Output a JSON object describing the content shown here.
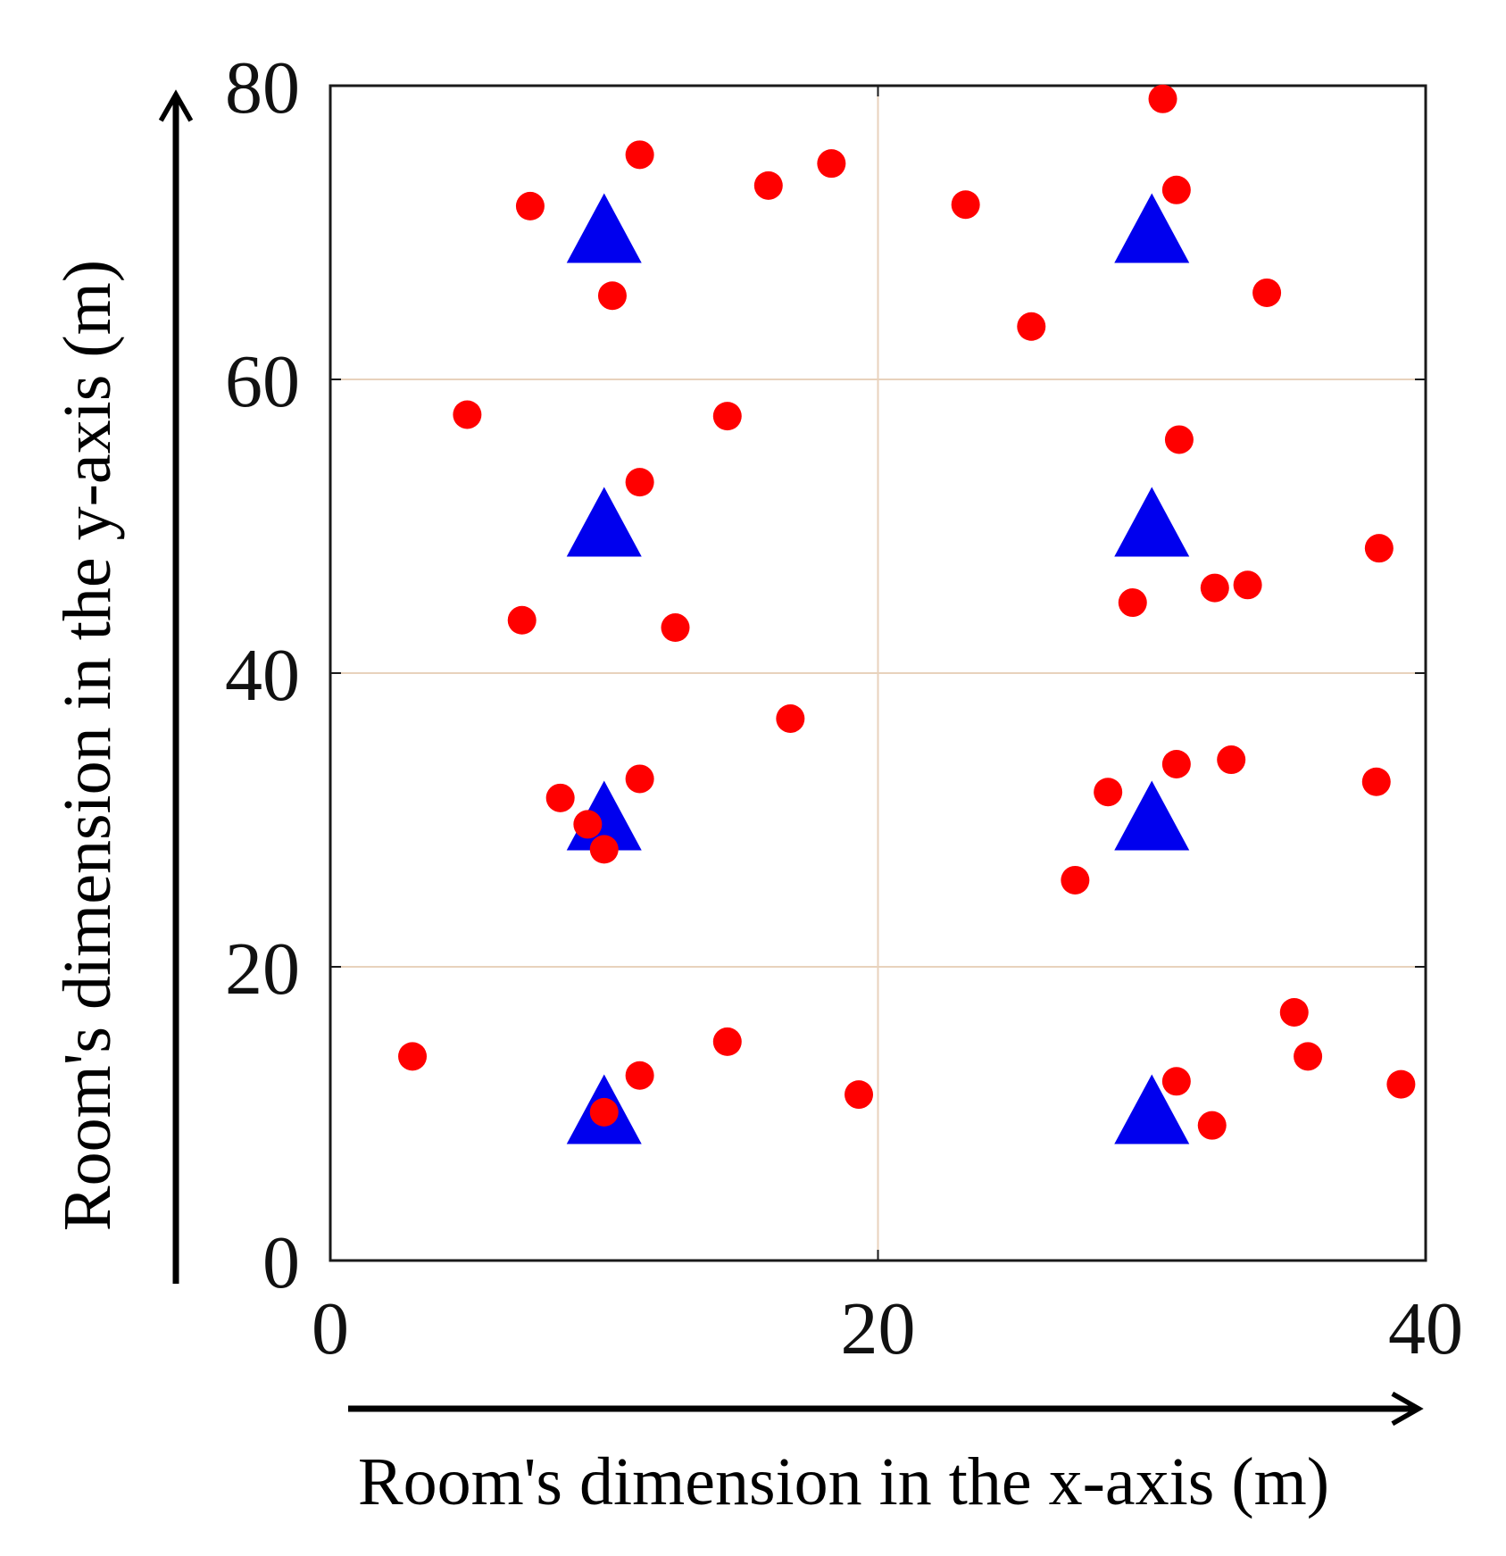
{
  "chart_data": {
    "type": "scatter",
    "title": "",
    "xlabel": "Room's dimension in the x-axis (m)",
    "ylabel": "Room's dimension in the y-axis (m)",
    "xlim": [
      0,
      40
    ],
    "ylim": [
      0,
      80
    ],
    "x_ticks": [
      "0",
      "20",
      "40"
    ],
    "y_ticks": [
      "0",
      "20",
      "40",
      "60",
      "80"
    ],
    "grid": true,
    "grid_color": "#e8d2bc",
    "frame_color": "#1a1a1a",
    "series": [
      {
        "marker": "triangle",
        "color": "#0000ee",
        "points": [
          [
            10,
            70
          ],
          [
            30,
            70
          ],
          [
            10,
            50
          ],
          [
            30,
            50
          ],
          [
            10,
            30
          ],
          [
            30,
            30
          ],
          [
            10,
            10
          ],
          [
            30,
            10
          ]
        ]
      },
      {
        "marker": "circle",
        "color": "#ff0000",
        "points": [
          [
            30.4,
            79.1
          ],
          [
            11.3,
            75.3
          ],
          [
            16.0,
            73.2
          ],
          [
            18.3,
            74.7
          ],
          [
            7.3,
            71.8
          ],
          [
            23.2,
            71.9
          ],
          [
            30.9,
            72.9
          ],
          [
            10.3,
            65.7
          ],
          [
            34.2,
            65.9
          ],
          [
            25.6,
            63.6
          ],
          [
            5.0,
            57.6
          ],
          [
            14.5,
            57.5
          ],
          [
            31.0,
            55.9
          ],
          [
            11.3,
            53.0
          ],
          [
            38.3,
            48.5
          ],
          [
            29.3,
            44.8
          ],
          [
            32.3,
            45.8
          ],
          [
            33.5,
            46.0
          ],
          [
            7.0,
            43.6
          ],
          [
            12.6,
            43.1
          ],
          [
            16.8,
            36.9
          ],
          [
            30.9,
            33.8
          ],
          [
            32.9,
            34.1
          ],
          [
            38.2,
            32.6
          ],
          [
            11.3,
            32.8
          ],
          [
            8.4,
            31.5
          ],
          [
            9.4,
            29.7
          ],
          [
            28.4,
            31.9
          ],
          [
            10.0,
            28.0
          ],
          [
            27.2,
            25.9
          ],
          [
            35.2,
            16.9
          ],
          [
            3.0,
            13.9
          ],
          [
            14.5,
            14.9
          ],
          [
            35.7,
            13.9
          ],
          [
            11.3,
            12.6
          ],
          [
            30.9,
            12.2
          ],
          [
            19.3,
            11.3
          ],
          [
            39.1,
            12.0
          ],
          [
            10.0,
            10.1
          ],
          [
            32.2,
            9.2
          ]
        ]
      }
    ]
  }
}
